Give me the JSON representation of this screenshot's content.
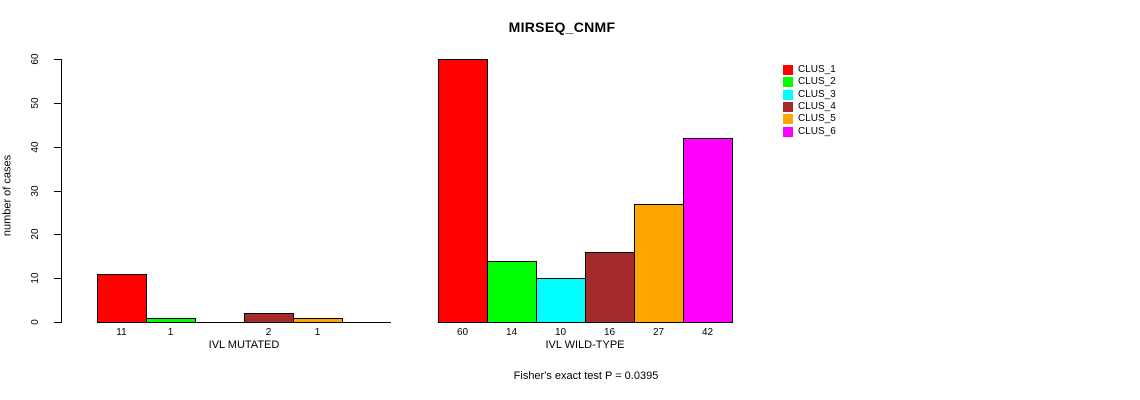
{
  "title": "MIRSEQ_CNMF",
  "chart_data": {
    "type": "bar",
    "title": "MIRSEQ_CNMF",
    "xlabel": "",
    "ylabel": "number of cases",
    "ylim": [
      0,
      60
    ],
    "yticks": [
      0,
      10,
      20,
      30,
      40,
      50,
      60
    ],
    "grid": false,
    "legend_position": "right",
    "clusters": [
      "CLUS_1",
      "CLUS_2",
      "CLUS_3",
      "CLUS_4",
      "CLUS_5",
      "CLUS_6"
    ],
    "colors": [
      "#FF0000",
      "#00FF00",
      "#00FFFF",
      "#A52A2A",
      "#FFA500",
      "#FF00FF"
    ],
    "groups": [
      {
        "label": "IVL MUTATED",
        "values": [
          11,
          1,
          0,
          2,
          1,
          0
        ],
        "bar_labels": [
          "11",
          "1",
          "",
          "2",
          "1",
          ""
        ]
      },
      {
        "label": "IVL WILD-TYPE",
        "values": [
          60,
          14,
          10,
          16,
          27,
          42
        ],
        "bar_labels": [
          "60",
          "14",
          "10",
          "16",
          "27",
          "42"
        ]
      }
    ],
    "annotation": "Fisher's exact test P = 0.0395"
  }
}
